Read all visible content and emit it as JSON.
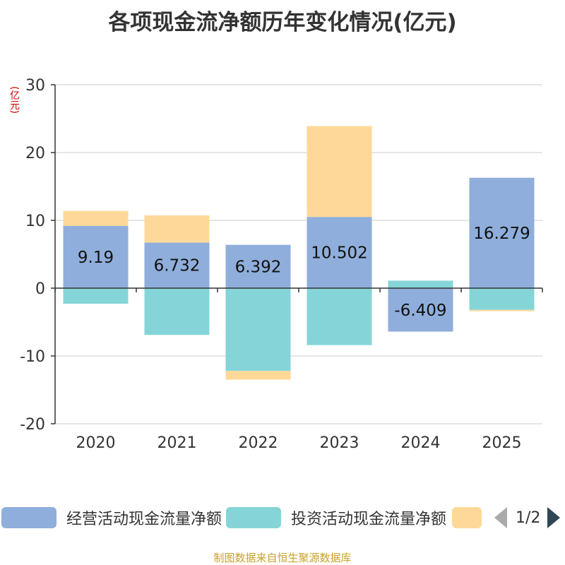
{
  "colors": {
    "operating": "#8faedb",
    "investing": "#85d5d8",
    "financing": "#fed898",
    "axis": "#333333",
    "grid": "#cccccc"
  },
  "chart_data": {
    "type": "bar",
    "stacked": true,
    "title": "各项现金流净额历年变化情况(亿元)",
    "ylabel": "(亿元)",
    "categories": [
      "2020",
      "2021",
      "2022",
      "2023",
      "2024",
      "2025"
    ],
    "ylim": [
      -20,
      30
    ],
    "yticks": [
      30,
      20,
      10,
      0,
      -10,
      -20
    ],
    "series": [
      {
        "name": "经营活动现金流量净额",
        "color": "#8faedb",
        "values": [
          9.19,
          6.732,
          6.392,
          10.502,
          -6.409,
          16.279
        ],
        "labels": [
          "9.19",
          "6.732",
          "6.392",
          "10.502",
          "-6.409",
          "16.279"
        ]
      },
      {
        "name": "投资活动现金流量净额",
        "color": "#85d5d8",
        "values": [
          -2.3,
          -6.9,
          -12.2,
          -8.4,
          1.1,
          -3.2
        ]
      },
      {
        "name": "",
        "color": "#fed898",
        "values": [
          2.2,
          4.0,
          -1.3,
          13.4,
          0,
          -0.2
        ]
      }
    ]
  },
  "legend": {
    "items": [
      {
        "label": "经营活动现金流量净额",
        "color": "#8faedb"
      },
      {
        "label": "投资活动现金流量净额",
        "color": "#85d5d8"
      },
      {
        "label": "",
        "color": "#fed898"
      }
    ],
    "page": "1/2"
  },
  "footer": "制图数据来自恒生聚源数据库"
}
